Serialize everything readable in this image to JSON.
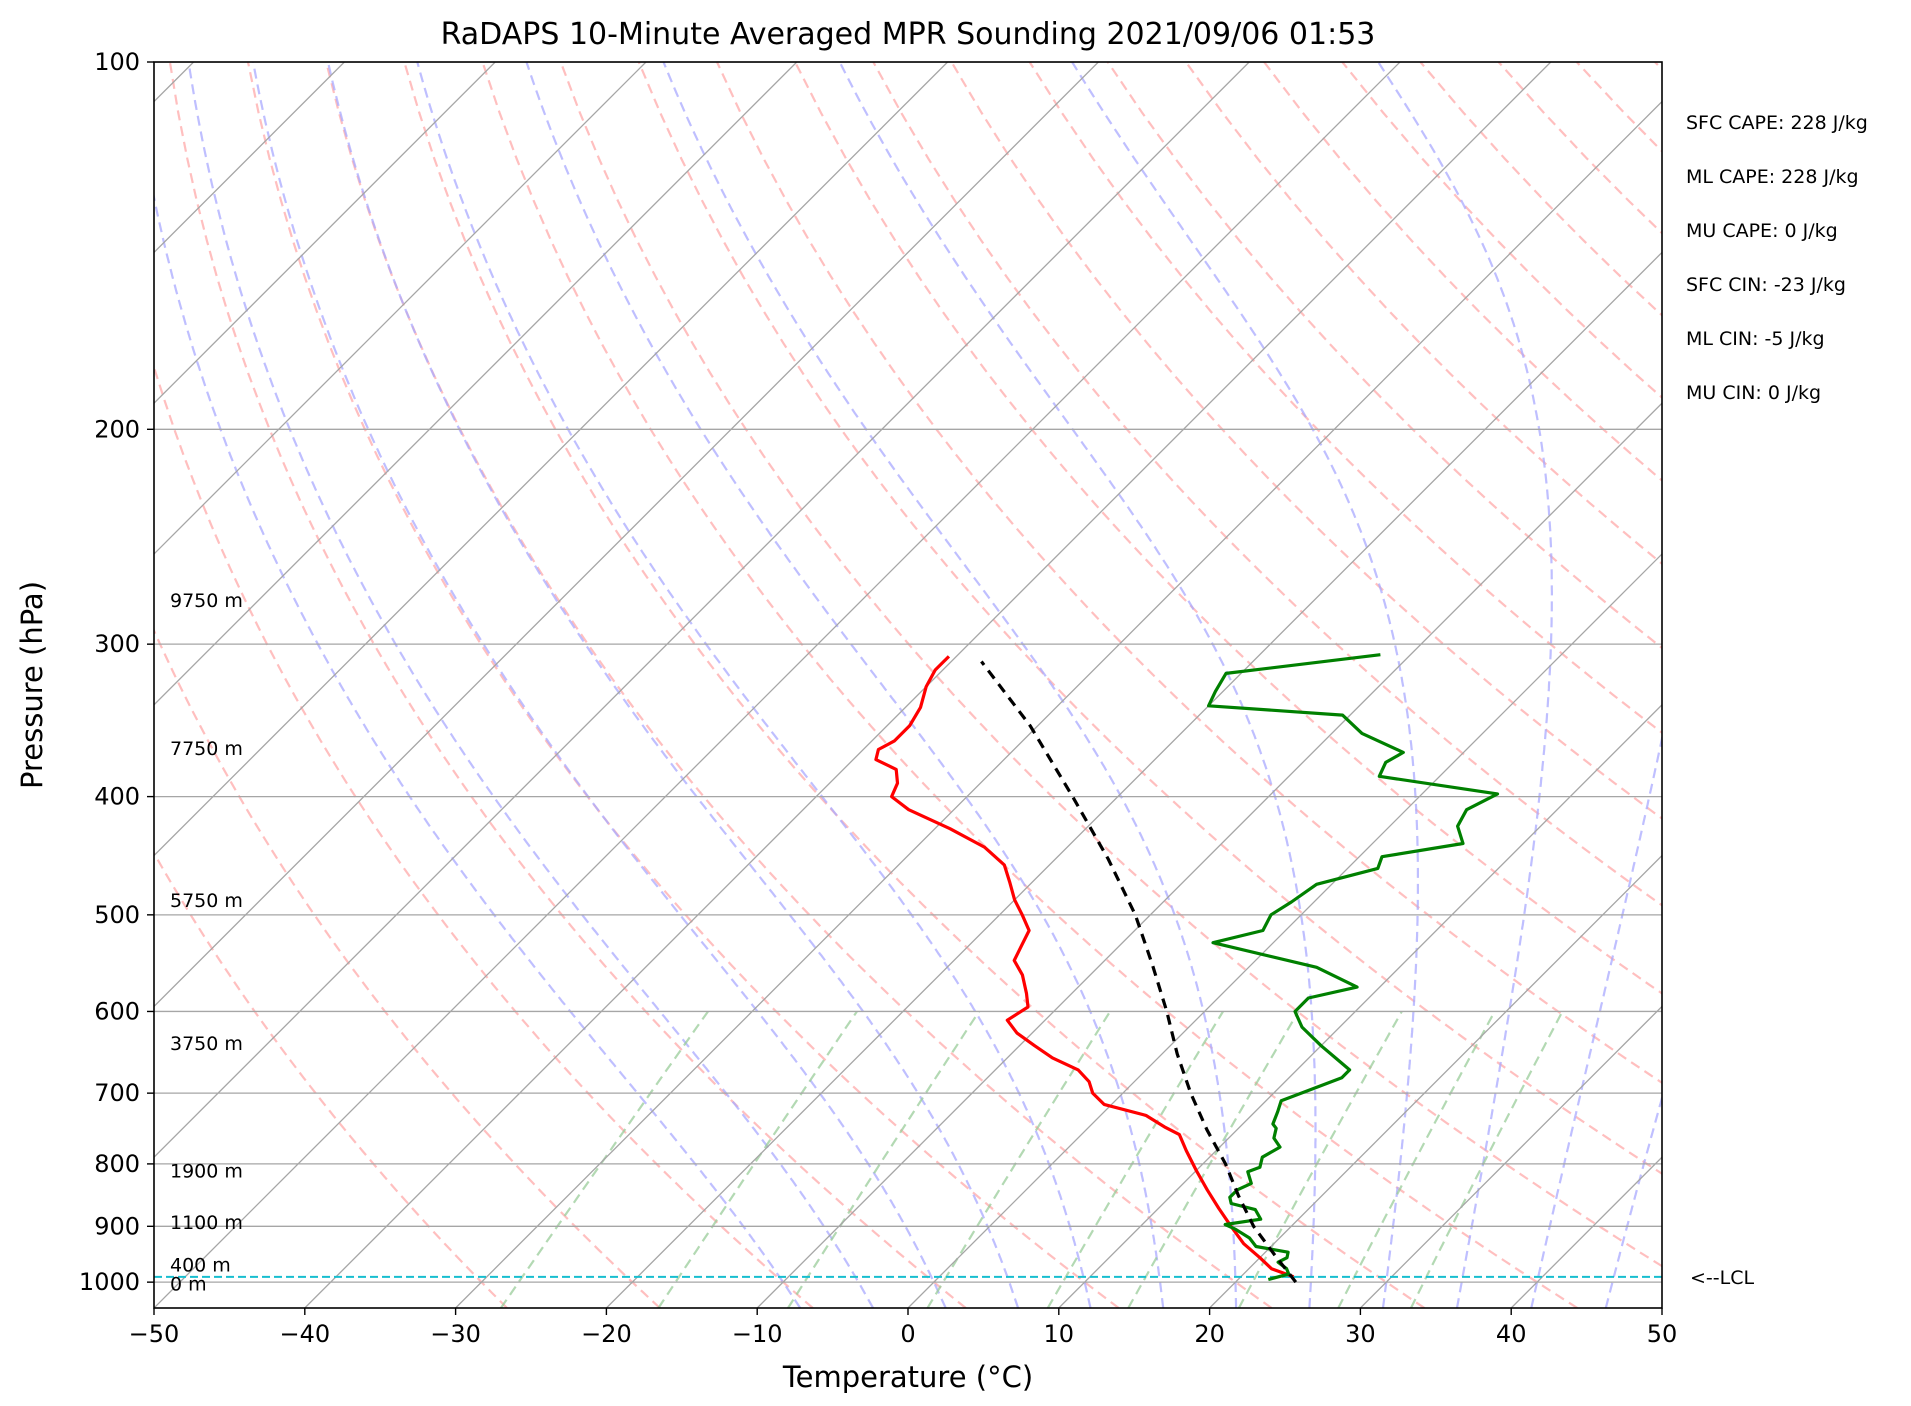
{
  "chart_data": {
    "type": "line",
    "title": "RaDAPS 10-Minute Averaged MPR Sounding 2021/09/06 01:53",
    "xlabel": "Temperature (°C)",
    "ylabel": "Pressure (hPa)",
    "xlim": [
      -50,
      50
    ],
    "ylim": [
      1050,
      100
    ],
    "y_scale": "log",
    "skew_t": true,
    "grid": true,
    "x_ticks": [
      -50,
      -40,
      -30,
      -20,
      -10,
      0,
      10,
      20,
      30,
      40,
      50
    ],
    "x_tick_labels": [
      "−50",
      "−40",
      "−30",
      "−20",
      "−10",
      "0",
      "10",
      "20",
      "30",
      "40",
      "50"
    ],
    "y_ticks": [
      100,
      200,
      300,
      400,
      500,
      600,
      700,
      800,
      900,
      1000
    ],
    "y_tick_labels": [
      "100",
      "200",
      "300",
      "400",
      "500",
      "600",
      "700",
      "800",
      "900",
      "1000"
    ],
    "series": [
      {
        "key": "temperature",
        "color": "#ff0000",
        "style": "solid",
        "points": [
          [
            990,
            23.5
          ],
          [
            975,
            21.5
          ],
          [
            955,
            20.0
          ],
          [
            930,
            18.0
          ],
          [
            900,
            16.0
          ],
          [
            870,
            14.0
          ],
          [
            840,
            12.0
          ],
          [
            810,
            10.0
          ],
          [
            780,
            8.0
          ],
          [
            757,
            6.5
          ],
          [
            746,
            5.0
          ],
          [
            730,
            3.0
          ],
          [
            715,
            -0.5
          ],
          [
            700,
            -2.0
          ],
          [
            685,
            -3.0
          ],
          [
            670,
            -4.5
          ],
          [
            655,
            -7.0
          ],
          [
            640,
            -9.0
          ],
          [
            625,
            -11.0
          ],
          [
            610,
            -12.5
          ],
          [
            595,
            -12.0
          ],
          [
            580,
            -13.0
          ],
          [
            560,
            -14.5
          ],
          [
            545,
            -16.0
          ],
          [
            530,
            -16.5
          ],
          [
            515,
            -17.0
          ],
          [
            500,
            -18.5
          ],
          [
            486,
            -20.0
          ],
          [
            470,
            -21.5
          ],
          [
            455,
            -23.0
          ],
          [
            440,
            -25.5
          ],
          [
            425,
            -29.0
          ],
          [
            410,
            -33.0
          ],
          [
            400,
            -35.0
          ],
          [
            390,
            -35.5
          ],
          [
            380,
            -36.5
          ],
          [
            373,
            -38.5
          ],
          [
            366,
            -39.0
          ],
          [
            360,
            -38.5
          ],
          [
            350,
            -38.5
          ],
          [
            338,
            -39.0
          ],
          [
            325,
            -40.0
          ],
          [
            315,
            -40.5
          ],
          [
            307,
            -40.5
          ]
        ]
      },
      {
        "key": "dewpoint",
        "color": "#008000",
        "style": "solid",
        "points": [
          [
            995,
            22.0
          ],
          [
            985,
            23.0
          ],
          [
            975,
            22.5
          ],
          [
            963,
            21.5
          ],
          [
            955,
            21.8
          ],
          [
            945,
            21.5
          ],
          [
            935,
            19.0
          ],
          [
            920,
            18.0
          ],
          [
            905,
            16.5
          ],
          [
            897,
            15.5
          ],
          [
            888,
            17.5
          ],
          [
            872,
            16.5
          ],
          [
            862,
            14.5
          ],
          [
            852,
            14.0
          ],
          [
            840,
            14.0
          ],
          [
            830,
            14.5
          ],
          [
            812,
            13.5
          ],
          [
            805,
            14.0
          ],
          [
            790,
            13.5
          ],
          [
            775,
            14.0
          ],
          [
            762,
            13.0
          ],
          [
            748,
            12.5
          ],
          [
            742,
            12.0
          ],
          [
            725,
            11.5
          ],
          [
            710,
            11.0
          ],
          [
            698,
            12.0
          ],
          [
            680,
            13.5
          ],
          [
            670,
            13.5
          ],
          [
            657,
            12.0
          ],
          [
            640,
            10.0
          ],
          [
            618,
            7.5
          ],
          [
            600,
            6.0
          ],
          [
            585,
            6.0
          ],
          [
            573,
            8.5
          ],
          [
            552,
            4.5
          ],
          [
            527,
            -4.0
          ],
          [
            515,
            -1.5
          ],
          [
            500,
            -2.0
          ],
          [
            488,
            -1.5
          ],
          [
            472,
            -1.0
          ],
          [
            458,
            2.0
          ],
          [
            448,
            1.5
          ],
          [
            437,
            6.0
          ],
          [
            423,
            4.5
          ],
          [
            410,
            4.0
          ],
          [
            398,
            5.0
          ],
          [
            385,
            -4.0
          ],
          [
            375,
            -4.5
          ],
          [
            368,
            -4.0
          ],
          [
            355,
            -8.0
          ],
          [
            343,
            -10.5
          ],
          [
            337,
            -20.0
          ],
          [
            328,
            -20.5
          ],
          [
            317,
            -21.0
          ],
          [
            306,
            -12.0
          ]
        ]
      },
      {
        "key": "parcel",
        "color": "#000000",
        "style": "dashed",
        "points": [
          [
            1000,
            24.0
          ],
          [
            950,
            20.8
          ],
          [
            900,
            17.5
          ],
          [
            850,
            14.5
          ],
          [
            800,
            11.5
          ],
          [
            750,
            8.0
          ],
          [
            700,
            4.5
          ],
          [
            650,
            1.0
          ],
          [
            600,
            -2.5
          ],
          [
            550,
            -6.5
          ],
          [
            500,
            -11.0
          ],
          [
            450,
            -16.5
          ],
          [
            400,
            -23.0
          ],
          [
            350,
            -30.5
          ],
          [
            310,
            -38.0
          ]
        ]
      }
    ],
    "lcl_pressure": 990,
    "height_labels": [
      {
        "label": "9750 m",
        "p": 276
      },
      {
        "label": "7750 m",
        "p": 365
      },
      {
        "label": "5750 m",
        "p": 486
      },
      {
        "label": "3750 m",
        "p": 637
      },
      {
        "label": "1900 m",
        "p": 810
      },
      {
        "label": "1100 m",
        "p": 893
      },
      {
        "label": "400 m",
        "p": 967
      },
      {
        "label": "0 m",
        "p": 1003
      }
    ],
    "lcl_label": "<--LCL",
    "stats": [
      "SFC CAPE: 228 J/kg",
      "ML CAPE: 228 J/kg",
      "MU CAPE: 0 J/kg",
      "SFC CIN: -23 J/kg",
      "ML CIN: -5 J/kg",
      "MU CIN: 0 J/kg"
    ],
    "colors": {
      "isotherm": "#a6a6a6",
      "isobar": "#a6a6a6",
      "dry_adiabat": "#ffaaaa",
      "moist_adiabat": "#aaaaff",
      "mixing_ratio": "#99cc99",
      "lcl_line": "#17becf"
    }
  }
}
